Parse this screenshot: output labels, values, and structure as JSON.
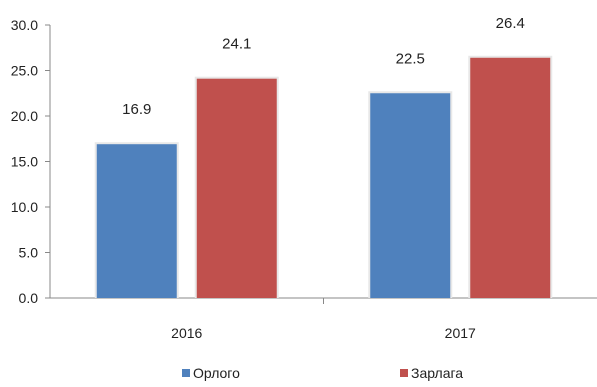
{
  "chart_data": {
    "type": "bar",
    "categories": [
      "2016",
      "2017"
    ],
    "series": [
      {
        "name": "Орлого",
        "values": [
          16.9,
          22.5
        ],
        "color": "#4F81BD"
      },
      {
        "name": "Зарлага",
        "values": [
          24.1,
          26.4
        ],
        "color": "#C0504D"
      }
    ],
    "y_ticks": [
      "0.0",
      "5.0",
      "10.0",
      "15.0",
      "20.0",
      "25.0",
      "30.0"
    ],
    "ylim": [
      0,
      30
    ],
    "data_labels": [
      [
        "16.9",
        "22.5"
      ],
      [
        "24.1",
        "26.4"
      ]
    ],
    "legend_position": "bottom",
    "grid": false
  }
}
